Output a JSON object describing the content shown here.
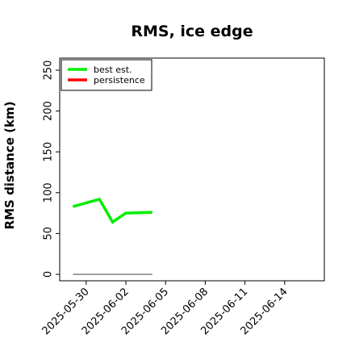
{
  "chart_data": {
    "type": "line",
    "title": "RMS, ice edge",
    "xlabel": "",
    "ylabel": "RMS distance (km)",
    "ylim": [
      0,
      260
    ],
    "yticks": [
      0,
      50,
      100,
      150,
      200,
      250
    ],
    "xlim": [
      "2025-05-28",
      "2025-06-17"
    ],
    "xticks": [
      "2025-05-30",
      "2025-06-02",
      "2025-06-05",
      "2025-06-08",
      "2025-06-11",
      "2025-06-14"
    ],
    "grid": false,
    "legend_position": "top-left",
    "series": [
      {
        "name": "best est.",
        "color": "#00ee00",
        "points": [
          {
            "x": "2025-05-29",
            "y": 83
          },
          {
            "x": "2025-05-31",
            "y": 92
          },
          {
            "x": "2025-06-01",
            "y": 64
          },
          {
            "x": "2025-06-02",
            "y": 75
          },
          {
            "x": "2025-06-04",
            "y": 76
          }
        ]
      },
      {
        "name": "persistence",
        "color": "#ff0000",
        "points": []
      }
    ],
    "reference_line": {
      "color": "#808080",
      "points": [
        {
          "x": "2025-05-29",
          "y": 0
        },
        {
          "x": "2025-06-04",
          "y": 0
        }
      ]
    }
  }
}
